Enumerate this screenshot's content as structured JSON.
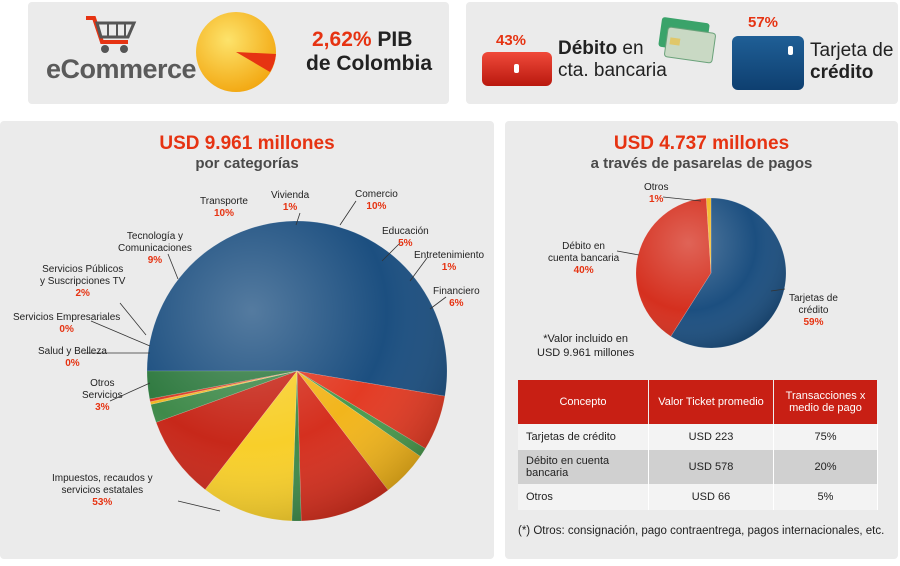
{
  "header": {
    "ecommerce_label": "eCommerce",
    "pib_percent": "2,62%",
    "pib_word": "PIB",
    "pib_country": "de Colombia",
    "debit_percent": "43%",
    "debit_label_bold": "Débito",
    "debit_label_rest1": "en",
    "debit_label_rest2": "cta. bancaria",
    "credit_percent": "57%",
    "credit_label_line1": "Tarjeta de",
    "credit_label_line2": "crédito"
  },
  "left_chart": {
    "title": "USD 9.961 millones",
    "subtitle": "por categorías",
    "labels": {
      "transporte": {
        "name": "Transporte",
        "pct": "10%"
      },
      "vivienda": {
        "name": "Vivienda",
        "pct": "1%"
      },
      "comercio": {
        "name": "Comercio",
        "pct": "10%"
      },
      "educacion": {
        "name": "Educación",
        "pct": "5%"
      },
      "entretenimiento": {
        "name": "Entretenimiento",
        "pct": "1%"
      },
      "financiero": {
        "name": "Financiero",
        "pct": "6%"
      },
      "tecnologia": {
        "name1": "Tecnología y",
        "name2": "Comunicaciones",
        "pct": "9%"
      },
      "servicios_publicos": {
        "name1": "Servicios Públicos",
        "name2": "y Suscripciones TV",
        "pct": "2%"
      },
      "servicios_empresariales": {
        "name": "Servicios Empresariales",
        "pct": "0%"
      },
      "salud": {
        "name": "Salud y Belleza",
        "pct": "0%"
      },
      "otros": {
        "name1": "Otros",
        "name2": "Servicios",
        "pct": "3%"
      },
      "impuestos": {
        "name1": "Impuestos, recaudos y",
        "name2": "servicios estatales",
        "pct": "53%"
      }
    }
  },
  "right_chart": {
    "title": "USD 4.737 millones",
    "subtitle": "a través de pasarelas de pagos",
    "labels": {
      "otros": {
        "name": "Otros",
        "pct": "1%"
      },
      "debito": {
        "name1": "Débito en",
        "name2": "cuenta bancaria",
        "pct": "40%"
      },
      "tarjetas": {
        "name1": "Tarjetas de",
        "name2": "crédito",
        "pct": "59%"
      }
    },
    "note_line1": "*Valor incluido en",
    "note_line2": "USD 9.961 millones"
  },
  "table": {
    "headers": [
      "Concepto",
      "Valor Ticket promedio",
      "Transacciones x medio de pago"
    ],
    "rows": [
      [
        "Tarjetas de crédito",
        "USD 223",
        "75%"
      ],
      [
        "Débito en cuenta bancaria",
        "USD 578",
        "20%"
      ],
      [
        "Otros",
        "USD 66",
        "5%"
      ]
    ]
  },
  "footnote": "(*) Otros: consignación, pago contraentrega, pagos internacionales, etc.",
  "chart_data": [
    {
      "type": "pie",
      "title": "USD 9.961 millones",
      "subtitle": "por categorías",
      "categories": [
        "Impuestos, recaudos y servicios estatales",
        "Financiero",
        "Entretenimiento",
        "Educación",
        "Comercio",
        "Vivienda",
        "Transporte",
        "Tecnología y Comunicaciones",
        "Servicios Públicos y Suscripciones TV",
        "Servicios Empresariales",
        "Salud y Belleza",
        "Otros Servicios"
      ],
      "values": [
        53,
        6,
        1,
        5,
        10,
        1,
        10,
        9,
        2,
        0.3,
        0.3,
        3
      ],
      "colors": [
        "#1c4f80",
        "#e33b24",
        "#4a9a4e",
        "#f2b51c",
        "#d5301f",
        "#3f8a4a",
        "#f8cf2a",
        "#c7281a",
        "#3f8a4a",
        "#f0b825",
        "#d93a25",
        "#2f7a40"
      ]
    },
    {
      "type": "pie",
      "title": "USD 4.737 millones",
      "subtitle": "a través de pasarelas de pagos",
      "categories": [
        "Tarjetas de crédito",
        "Débito en cuenta bancaria",
        "Otros"
      ],
      "values": [
        59,
        40,
        1
      ],
      "colors": [
        "#1c4f80",
        "#d5301f",
        "#f2b51c"
      ]
    }
  ]
}
